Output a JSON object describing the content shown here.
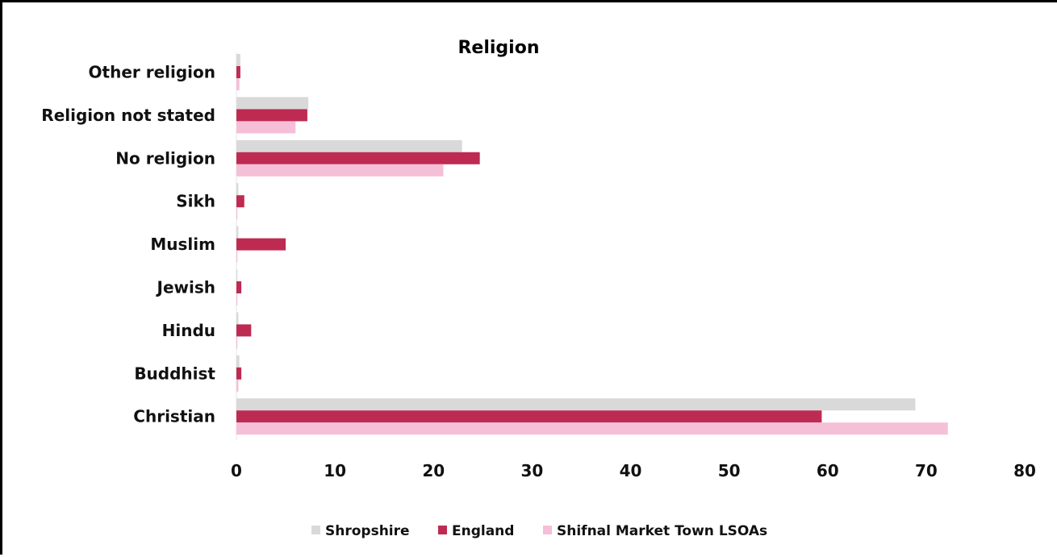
{
  "chart_data": {
    "type": "bar",
    "orientation": "horizontal",
    "title": "Religion",
    "xlabel": "",
    "ylabel": "",
    "categories": [
      "Other religion",
      "Religion not stated",
      "No religion",
      "Sikh",
      "Muslim",
      "Jewish",
      "Hindu",
      "Buddhist",
      "Christian"
    ],
    "series": [
      {
        "name": "Shropshire",
        "color": "#d9d9d9",
        "values": [
          0.4,
          7.3,
          22.9,
          0.2,
          0.2,
          0.1,
          0.2,
          0.3,
          68.9
        ]
      },
      {
        "name": "England",
        "color": "#be2b52",
        "values": [
          0.4,
          7.2,
          24.7,
          0.8,
          5.0,
          0.5,
          1.5,
          0.5,
          59.4
        ]
      },
      {
        "name": "Shifnal Market Town LSOAs",
        "color": "#f6bfd8",
        "values": [
          0.3,
          6.0,
          21.0,
          0.1,
          0.1,
          0.1,
          0.1,
          0.2,
          72.2
        ]
      }
    ],
    "xlim": [
      0,
      80
    ],
    "xticks": [
      "0",
      "10",
      "20",
      "30",
      "40",
      "50",
      "60",
      "70",
      "80"
    ],
    "grid": false,
    "legend_position": "bottom"
  }
}
